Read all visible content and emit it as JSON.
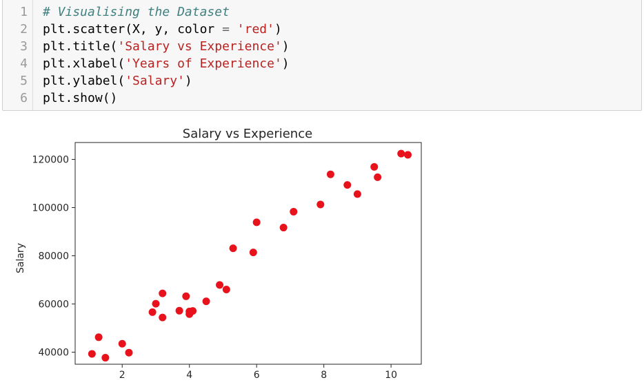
{
  "code_cell": {
    "lines": [
      {
        "num": "1",
        "segments": [
          {
            "text": "# Visualising the Dataset",
            "kind": "comment"
          }
        ]
      },
      {
        "num": "2",
        "segments": [
          {
            "text": "plt.scatter(X, y, color ",
            "kind": "plain"
          },
          {
            "text": "=",
            "kind": "op"
          },
          {
            "text": " ",
            "kind": "plain"
          },
          {
            "text": "'red'",
            "kind": "string"
          },
          {
            "text": ")",
            "kind": "plain"
          }
        ]
      },
      {
        "num": "3",
        "segments": [
          {
            "text": "plt.title(",
            "kind": "plain"
          },
          {
            "text": "'Salary vs Experience'",
            "kind": "string"
          },
          {
            "text": ")",
            "kind": "plain"
          }
        ]
      },
      {
        "num": "4",
        "segments": [
          {
            "text": "plt.xlabel(",
            "kind": "plain"
          },
          {
            "text": "'Years of Experience'",
            "kind": "string"
          },
          {
            "text": ")",
            "kind": "plain"
          }
        ]
      },
      {
        "num": "5",
        "segments": [
          {
            "text": "plt.ylabel(",
            "kind": "plain"
          },
          {
            "text": "'Salary'",
            "kind": "string"
          },
          {
            "text": ")",
            "kind": "plain"
          }
        ]
      },
      {
        "num": "6",
        "segments": [
          {
            "text": "plt.show()",
            "kind": "plain"
          }
        ]
      }
    ]
  },
  "chart_data": {
    "type": "scatter",
    "title": "Salary vs Experience",
    "xlabel": "",
    "ylabel": "Salary",
    "xlim": [
      0.6,
      10.9
    ],
    "ylim": [
      35000,
      127000
    ],
    "xticks": [
      2,
      4,
      6,
      8,
      10
    ],
    "yticks": [
      40000,
      60000,
      80000,
      100000,
      120000
    ],
    "grid": false,
    "marker_color": "#e8121c",
    "series": [
      {
        "x": [
          1.1,
          1.3,
          1.5,
          2.0,
          2.2,
          2.9,
          3.0,
          3.2,
          3.2,
          3.7,
          3.9,
          4.0,
          4.0,
          4.1,
          4.5,
          4.9,
          5.1,
          5.3,
          5.9,
          6.0,
          6.8,
          7.1,
          7.9,
          8.2,
          8.7,
          9.0,
          9.5,
          9.6,
          10.3,
          10.5
        ],
        "y": [
          39300,
          46200,
          37700,
          43500,
          39800,
          56600,
          60100,
          54400,
          64400,
          57200,
          63200,
          55800,
          56900,
          57100,
          61100,
          67900,
          66000,
          83100,
          81400,
          93900,
          91700,
          98300,
          101300,
          113800,
          109400,
          105600,
          116900,
          112600,
          122400,
          121900
        ]
      }
    ]
  }
}
